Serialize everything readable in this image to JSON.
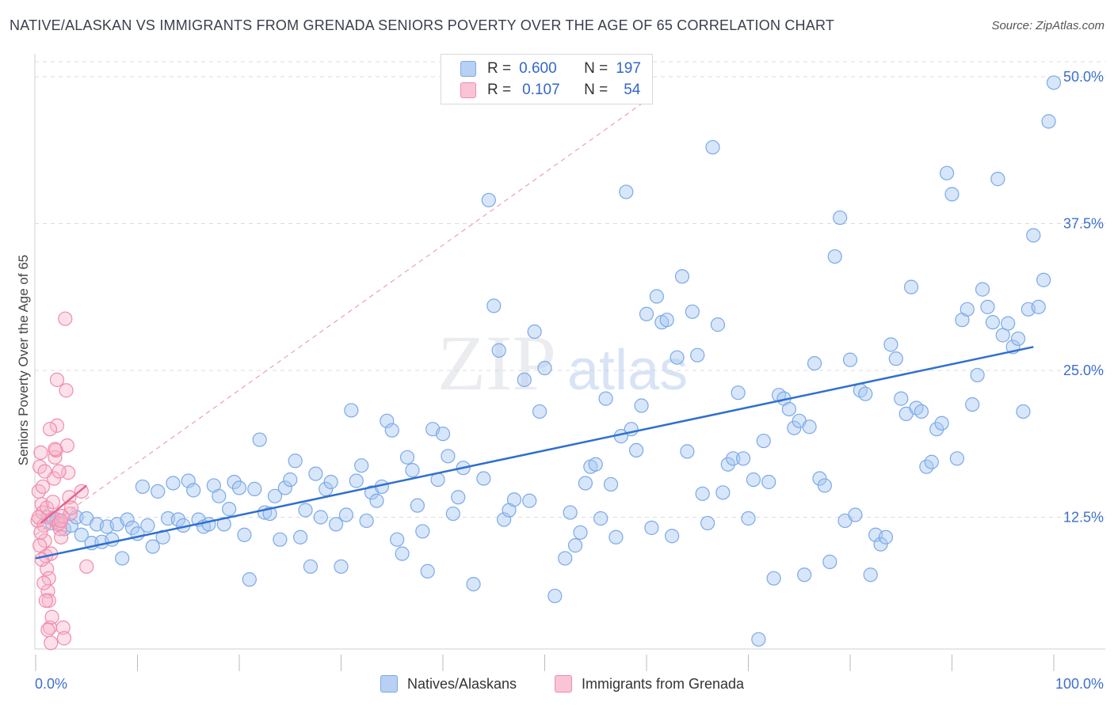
{
  "title": "NATIVE/ALASKAN VS IMMIGRANTS FROM GRENADA SENIORS POVERTY OVER THE AGE OF 65 CORRELATION CHART",
  "source": "Source: ZipAtlas.com",
  "watermark": {
    "zip": "ZIP",
    "atlas": "atlas"
  },
  "legend": {
    "r_label": "R =",
    "n_label": "N =",
    "natives": {
      "r": "0.600",
      "n": "197"
    },
    "grenada": {
      "r": "0.107",
      "n": "54"
    }
  },
  "colors": {
    "blue": "#7aaae8",
    "blue_line": "#2f6fd0",
    "pink": "#f08cab",
    "pink_line": "#e86390",
    "axis_label": "#3d6fcf"
  },
  "chart_data": {
    "type": "scatter",
    "title": "NATIVE/ALASKAN VS IMMIGRANTS FROM GRENADA SENIORS POVERTY OVER THE AGE OF 65 CORRELATION CHART",
    "xlabel": "",
    "ylabel": "Seniors Poverty Over the Age of 65",
    "xlim": [
      0,
      100
    ],
    "ylim": [
      0,
      50
    ],
    "x_tick_labels": [
      "0.0%",
      "100.0%"
    ],
    "y_tick_labels": [
      "12.5%",
      "25.0%",
      "37.5%",
      "50.0%"
    ],
    "y_ticks": [
      12.5,
      25.0,
      37.5,
      50.0
    ],
    "series": [
      {
        "name": "Natives/Alaskans",
        "trend": {
          "x": [
            0,
            98
          ],
          "y": [
            9.0,
            27.0
          ]
        },
        "points": [
          [
            1.2,
            12.5
          ],
          [
            1.6,
            12.0
          ],
          [
            2.1,
            12.3
          ],
          [
            2.8,
            11.5
          ],
          [
            3.5,
            11.8
          ],
          [
            4.0,
            12.5
          ],
          [
            4.5,
            11.0
          ],
          [
            5.0,
            12.4
          ],
          [
            5.5,
            10.3
          ],
          [
            6.0,
            11.9
          ],
          [
            6.5,
            10.4
          ],
          [
            7.0,
            11.7
          ],
          [
            7.5,
            10.6
          ],
          [
            8.0,
            11.9
          ],
          [
            8.5,
            9.0
          ],
          [
            9.0,
            12.3
          ],
          [
            9.5,
            11.6
          ],
          [
            10.0,
            11.1
          ],
          [
            10.5,
            15.1
          ],
          [
            11.0,
            11.8
          ],
          [
            11.5,
            10.0
          ],
          [
            12.0,
            14.7
          ],
          [
            12.5,
            10.8
          ],
          [
            13.0,
            12.4
          ],
          [
            13.5,
            15.4
          ],
          [
            14.0,
            12.3
          ],
          [
            14.5,
            11.8
          ],
          [
            15.0,
            15.6
          ],
          [
            15.5,
            14.8
          ],
          [
            16.0,
            12.3
          ],
          [
            16.5,
            11.7
          ],
          [
            17.0,
            11.9
          ],
          [
            17.5,
            15.2
          ],
          [
            18.0,
            14.3
          ],
          [
            18.5,
            11.9
          ],
          [
            19.0,
            13.2
          ],
          [
            19.5,
            15.5
          ],
          [
            20.0,
            15.0
          ],
          [
            20.5,
            11.0
          ],
          [
            21.0,
            7.2
          ],
          [
            21.5,
            14.9
          ],
          [
            22.0,
            19.1
          ],
          [
            22.5,
            12.9
          ],
          [
            23.0,
            12.8
          ],
          [
            23.5,
            14.3
          ],
          [
            24.0,
            10.6
          ],
          [
            24.5,
            15.0
          ],
          [
            25.0,
            15.7
          ],
          [
            25.5,
            17.3
          ],
          [
            26.0,
            10.8
          ],
          [
            26.5,
            13.1
          ],
          [
            27.0,
            8.3
          ],
          [
            27.5,
            16.2
          ],
          [
            28.0,
            12.5
          ],
          [
            28.5,
            14.9
          ],
          [
            29.0,
            15.5
          ],
          [
            29.5,
            11.9
          ],
          [
            30.0,
            8.3
          ],
          [
            30.5,
            12.7
          ],
          [
            31.0,
            21.6
          ],
          [
            31.5,
            15.6
          ],
          [
            32.0,
            16.9
          ],
          [
            32.5,
            12.2
          ],
          [
            33.0,
            14.6
          ],
          [
            33.5,
            13.9
          ],
          [
            34.0,
            15.1
          ],
          [
            34.5,
            20.7
          ],
          [
            35.0,
            19.9
          ],
          [
            35.5,
            10.6
          ],
          [
            36.0,
            9.4
          ],
          [
            36.5,
            17.6
          ],
          [
            37.0,
            16.5
          ],
          [
            37.5,
            13.5
          ],
          [
            38.0,
            11.3
          ],
          [
            38.5,
            7.9
          ],
          [
            39.0,
            20.0
          ],
          [
            39.5,
            15.7
          ],
          [
            40.0,
            19.6
          ],
          [
            40.5,
            17.7
          ],
          [
            41.0,
            12.8
          ],
          [
            41.5,
            14.2
          ],
          [
            42.0,
            16.7
          ],
          [
            43.0,
            6.8
          ],
          [
            44.0,
            15.8
          ],
          [
            44.5,
            39.5
          ],
          [
            45.0,
            30.5
          ],
          [
            45.5,
            26.7
          ],
          [
            46.0,
            12.3
          ],
          [
            46.5,
            13.1
          ],
          [
            47.0,
            14.0
          ],
          [
            48.0,
            24.2
          ],
          [
            48.5,
            13.9
          ],
          [
            49.0,
            28.3
          ],
          [
            49.5,
            21.5
          ],
          [
            50.0,
            25.2
          ],
          [
            51.0,
            5.8
          ],
          [
            52.0,
            9.0
          ],
          [
            52.5,
            12.9
          ],
          [
            53.0,
            10.1
          ],
          [
            53.5,
            11.2
          ],
          [
            54.0,
            15.4
          ],
          [
            54.5,
            16.8
          ],
          [
            55.0,
            17.0
          ],
          [
            55.5,
            12.4
          ],
          [
            56.0,
            22.6
          ],
          [
            56.5,
            15.3
          ],
          [
            57.0,
            10.8
          ],
          [
            57.5,
            19.4
          ],
          [
            58.0,
            40.2
          ],
          [
            58.5,
            20.0
          ],
          [
            59.0,
            18.2
          ],
          [
            59.5,
            22.0
          ],
          [
            60.0,
            29.8
          ],
          [
            60.5,
            11.6
          ],
          [
            61.0,
            31.3
          ],
          [
            61.5,
            29.1
          ],
          [
            62.0,
            29.3
          ],
          [
            62.5,
            10.9
          ],
          [
            63.0,
            26.1
          ],
          [
            63.5,
            33.0
          ],
          [
            64.0,
            18.1
          ],
          [
            64.5,
            30.0
          ],
          [
            65.0,
            26.3
          ],
          [
            65.5,
            14.5
          ],
          [
            66.0,
            12.0
          ],
          [
            66.5,
            44.0
          ],
          [
            67.0,
            28.9
          ],
          [
            67.5,
            14.6
          ],
          [
            68.0,
            17.0
          ],
          [
            68.5,
            17.5
          ],
          [
            69.0,
            23.1
          ],
          [
            69.5,
            17.5
          ],
          [
            70.0,
            12.4
          ],
          [
            70.5,
            15.7
          ],
          [
            71.0,
            2.1
          ],
          [
            71.5,
            19.0
          ],
          [
            72.0,
            15.5
          ],
          [
            72.5,
            7.3
          ],
          [
            73.0,
            22.9
          ],
          [
            73.5,
            22.6
          ],
          [
            74.0,
            21.7
          ],
          [
            74.5,
            20.1
          ],
          [
            75.0,
            20.7
          ],
          [
            75.5,
            7.6
          ],
          [
            76.0,
            20.2
          ],
          [
            76.5,
            25.6
          ],
          [
            77.0,
            15.8
          ],
          [
            77.5,
            15.2
          ],
          [
            78.0,
            8.7
          ],
          [
            78.5,
            34.7
          ],
          [
            79.0,
            38.0
          ],
          [
            79.5,
            12.2
          ],
          [
            80.0,
            25.9
          ],
          [
            80.5,
            12.7
          ],
          [
            81.0,
            23.3
          ],
          [
            81.5,
            23.0
          ],
          [
            82.0,
            7.6
          ],
          [
            82.5,
            11.0
          ],
          [
            83.0,
            10.2
          ],
          [
            83.5,
            10.8
          ],
          [
            84.0,
            27.2
          ],
          [
            84.5,
            26.0
          ],
          [
            85.0,
            22.6
          ],
          [
            85.5,
            21.3
          ],
          [
            86.0,
            32.1
          ],
          [
            86.5,
            21.8
          ],
          [
            87.0,
            21.5
          ],
          [
            87.5,
            16.8
          ],
          [
            88.0,
            17.2
          ],
          [
            88.5,
            20.0
          ],
          [
            89.0,
            20.5
          ],
          [
            89.5,
            41.8
          ],
          [
            90.0,
            40.0
          ],
          [
            90.5,
            17.5
          ],
          [
            91.0,
            29.3
          ],
          [
            91.5,
            30.2
          ],
          [
            92.0,
            22.1
          ],
          [
            92.5,
            24.6
          ],
          [
            93.0,
            31.9
          ],
          [
            93.5,
            30.4
          ],
          [
            94.0,
            29.1
          ],
          [
            94.5,
            41.3
          ],
          [
            95.0,
            28.0
          ],
          [
            95.5,
            29.0
          ],
          [
            96.0,
            27.0
          ],
          [
            96.5,
            27.7
          ],
          [
            97.0,
            21.5
          ],
          [
            97.5,
            30.2
          ],
          [
            98.0,
            36.5
          ],
          [
            98.5,
            30.4
          ],
          [
            99.0,
            32.7
          ],
          [
            99.5,
            46.2
          ],
          [
            100.0,
            49.5
          ]
        ]
      },
      {
        "name": "Immigrants from Grenada",
        "trend": {
          "x": [
            0.5,
            5.0
          ],
          "y": [
            12.0,
            15.2
          ]
        },
        "extended_trend": {
          "x": [
            0,
            60
          ],
          "y": [
            11.0,
            48.0
          ]
        },
        "points": [
          [
            0.2,
            12.2
          ],
          [
            0.3,
            14.7
          ],
          [
            0.4,
            16.8
          ],
          [
            0.5,
            18.0
          ],
          [
            0.6,
            13.6
          ],
          [
            0.7,
            12.9
          ],
          [
            0.8,
            11.8
          ],
          [
            0.9,
            10.5
          ],
          [
            1.0,
            9.2
          ],
          [
            1.1,
            8.1
          ],
          [
            1.2,
            6.2
          ],
          [
            1.3,
            5.4
          ],
          [
            1.4,
            3.1
          ],
          [
            1.5,
            1.8
          ],
          [
            1.6,
            4.0
          ],
          [
            1.7,
            12.4
          ],
          [
            1.8,
            15.8
          ],
          [
            1.9,
            17.6
          ],
          [
            2.0,
            18.2
          ],
          [
            2.1,
            24.2
          ],
          [
            2.2,
            11.9
          ],
          [
            2.3,
            12.0
          ],
          [
            2.4,
            11.5
          ],
          [
            2.5,
            10.8
          ],
          [
            2.6,
            12.6
          ],
          [
            2.7,
            3.1
          ],
          [
            2.8,
            2.2
          ],
          [
            2.9,
            29.4
          ],
          [
            3.0,
            23.3
          ],
          [
            3.1,
            18.6
          ],
          [
            3.2,
            16.3
          ],
          [
            3.3,
            14.2
          ],
          [
            3.4,
            12.8
          ],
          [
            3.5,
            13.3
          ],
          [
            0.3,
            12.5
          ],
          [
            0.5,
            11.2
          ],
          [
            0.7,
            15.1
          ],
          [
            0.9,
            16.4
          ],
          [
            1.1,
            13.3
          ],
          [
            1.3,
            7.3
          ],
          [
            1.5,
            9.4
          ],
          [
            1.7,
            13.8
          ],
          [
            1.9,
            18.3
          ],
          [
            2.1,
            20.3
          ],
          [
            2.3,
            16.4
          ],
          [
            2.5,
            12.2
          ],
          [
            0.4,
            10.1
          ],
          [
            0.6,
            8.9
          ],
          [
            0.8,
            6.9
          ],
          [
            1.0,
            5.4
          ],
          [
            1.2,
            2.9
          ],
          [
            1.4,
            20.0
          ],
          [
            4.5,
            14.7
          ],
          [
            5.0,
            8.3
          ]
        ]
      }
    ]
  }
}
